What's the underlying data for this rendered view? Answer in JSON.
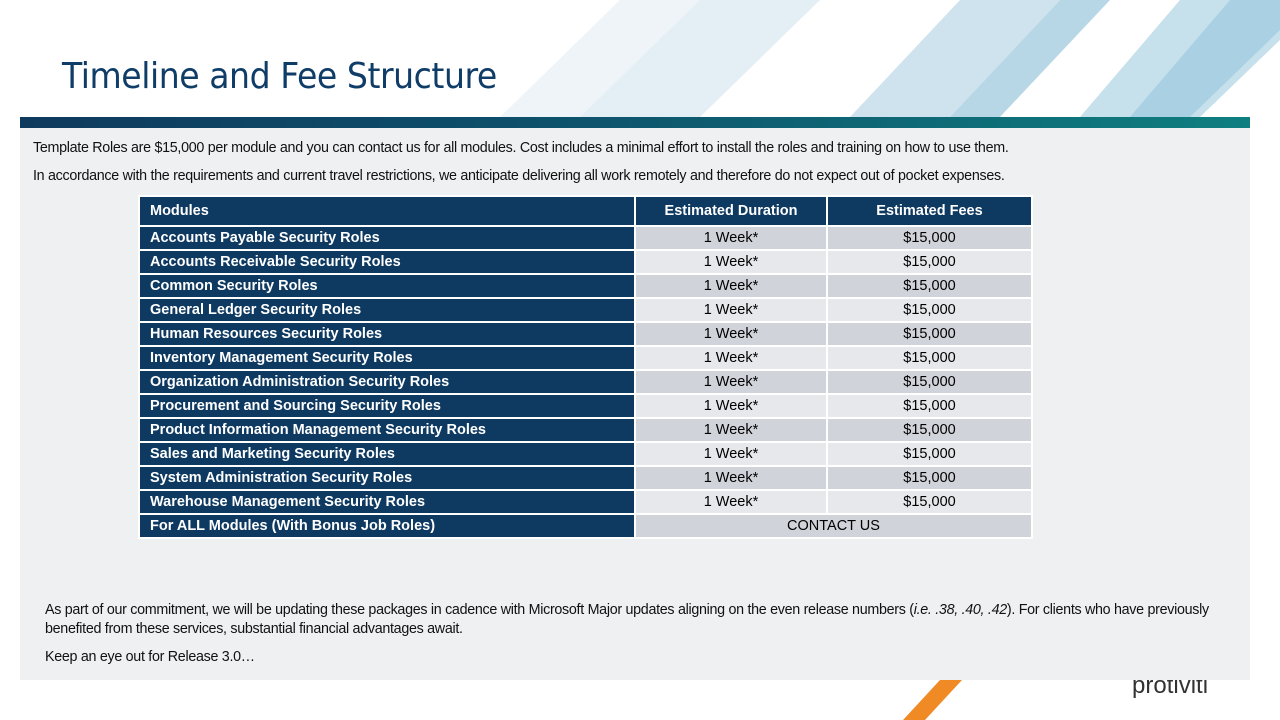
{
  "title": "Timeline and Fee Structure",
  "intro": [
    "Template Roles are $15,000 per module and you can contact us for all modules. Cost includes a minimal effort to install the roles and training on how to use them.",
    "In accordance with the requirements and current travel restrictions, we anticipate delivering all work remotely and therefore do not expect out of pocket expenses."
  ],
  "table": {
    "header": [
      "Modules",
      "Estimated Duration",
      "Estimated Fees"
    ],
    "rows": [
      [
        "Accounts Payable Security Roles",
        "1 Week*",
        "$15,000"
      ],
      [
        "Accounts Receivable Security Roles",
        "1 Week*",
        "$15,000"
      ],
      [
        "Common Security Roles",
        "1 Week*",
        "$15,000"
      ],
      [
        "General Ledger Security Roles",
        "1 Week*",
        "$15,000"
      ],
      [
        "Human Resources Security Roles",
        "1 Week*",
        "$15,000"
      ],
      [
        "Inventory Management Security Roles",
        "1 Week*",
        "$15,000"
      ],
      [
        "Organization Administration Security Roles",
        "1 Week*",
        "$15,000"
      ],
      [
        "Procurement and Sourcing Security Roles",
        "1 Week*",
        "$15,000"
      ],
      [
        "Product Information Management Security Roles",
        "1 Week*",
        "$15,000"
      ],
      [
        "Sales and Marketing Security Roles",
        "1 Week*",
        "$15,000"
      ],
      [
        "System Administration Security Roles",
        "1 Week*",
        "$15,000"
      ],
      [
        "Warehouse Management Security Roles",
        "1 Week*",
        "$15,000"
      ],
      [
        "For ALL Modules (With Bonus Job Roles)",
        "CONTACT US"
      ]
    ]
  },
  "footer": {
    "commitment": [
      "As part of our commitment, we will be updating these packages in cadence with Microsoft Major updates aligning on the even release numbers (",
      "i.e. .38, .40, .42",
      "). For clients who have previously benefited from these services, substantial financial advantages await."
    ],
    "closing": "Keep an eye out for Release 3.0…"
  },
  "logo": "protiviti"
}
